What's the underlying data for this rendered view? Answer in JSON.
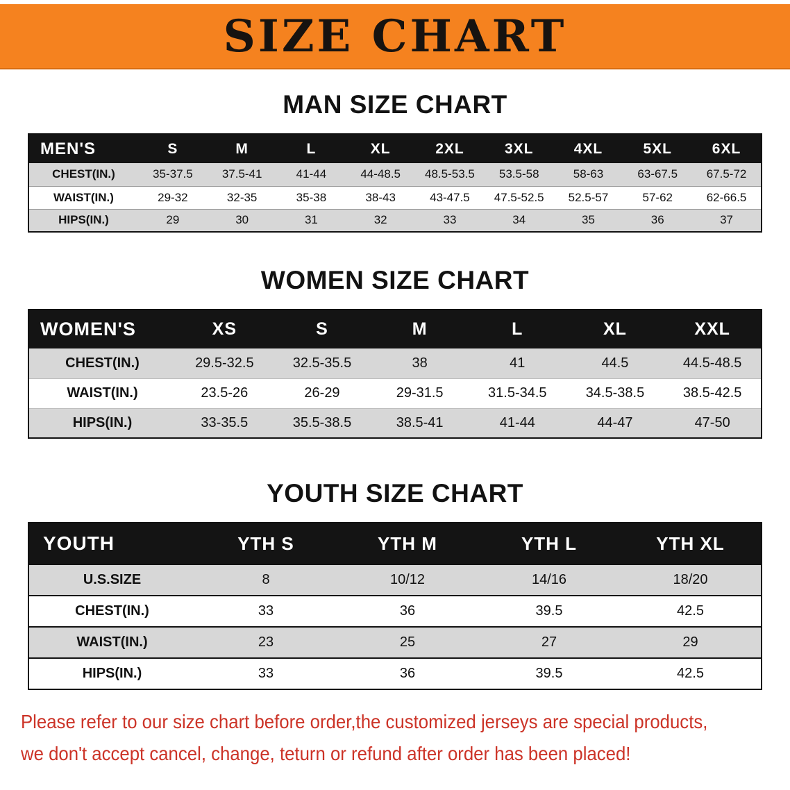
{
  "banner": {
    "title": "SIZE CHART",
    "bg_color": "#f5821f"
  },
  "sections": [
    {
      "heading": "MAN SIZE CHART",
      "table": {
        "header": [
          "MEN'S",
          "S",
          "M",
          "L",
          "XL",
          "2XL",
          "3XL",
          "4XL",
          "5XL",
          "6XL"
        ],
        "rows": [
          [
            "CHEST(IN.)",
            "35-37.5",
            "37.5-41",
            "41-44",
            "44-48.5",
            "48.5-53.5",
            "53.5-58",
            "58-63",
            "63-67.5",
            "67.5-72"
          ],
          [
            "WAIST(IN.)",
            "29-32",
            "32-35",
            "35-38",
            "38-43",
            "43-47.5",
            "47.5-52.5",
            "52.5-57",
            "57-62",
            "62-66.5"
          ],
          [
            "HIPS(IN.)",
            "29",
            "30",
            "31",
            "32",
            "33",
            "34",
            "35",
            "36",
            "37"
          ]
        ]
      }
    },
    {
      "heading": "WOMEN SIZE CHART",
      "table": {
        "header": [
          "WOMEN'S",
          "XS",
          "S",
          "M",
          "L",
          "XL",
          "XXL"
        ],
        "rows": [
          [
            "CHEST(IN.)",
            "29.5-32.5",
            "32.5-35.5",
            "38",
            "41",
            "44.5",
            "44.5-48.5"
          ],
          [
            "WAIST(IN.)",
            "23.5-26",
            "26-29",
            "29-31.5",
            "31.5-34.5",
            "34.5-38.5",
            "38.5-42.5"
          ],
          [
            "HIPS(IN.)",
            "33-35.5",
            "35.5-38.5",
            "38.5-41",
            "41-44",
            "44-47",
            "47-50"
          ]
        ]
      }
    },
    {
      "heading": "YOUTH SIZE CHART",
      "table": {
        "header": [
          "YOUTH",
          "YTH S",
          "YTH M",
          "YTH L",
          "YTH XL"
        ],
        "rows": [
          [
            "U.S.SIZE",
            "8",
            "10/12",
            "14/16",
            "18/20"
          ],
          [
            "CHEST(IN.)",
            "33",
            "36",
            "39.5",
            "42.5"
          ],
          [
            "WAIST(IN.)",
            "23",
            "25",
            "27",
            "29"
          ],
          [
            "HIPS(IN.)",
            "33",
            "36",
            "39.5",
            "42.5"
          ]
        ]
      }
    }
  ],
  "disclaimer": {
    "line1": "Please refer to our size chart before order,the customized jerseys are special products,",
    "line2": "we don't accept cancel, change, teturn or refund after order has been placed!",
    "color": "#cc3327"
  }
}
